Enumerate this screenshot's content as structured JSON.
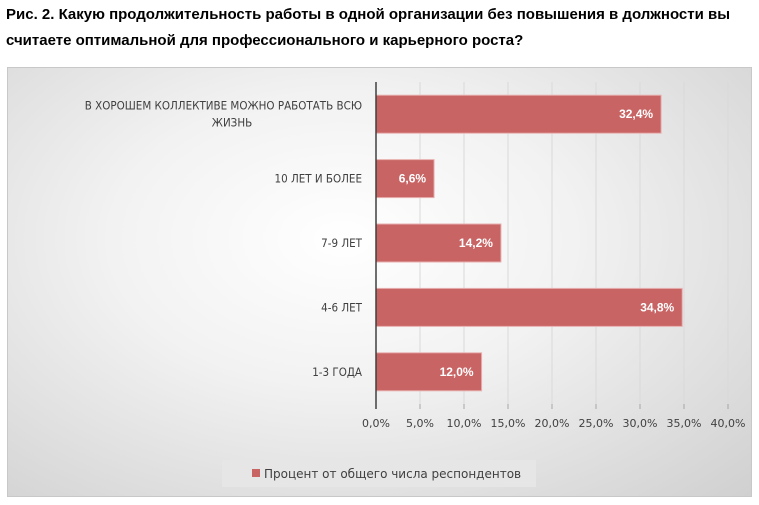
{
  "title": "Рис. 2. Какую продолжительность работы в одной организации без повышения в должности вы считаете оптимальной для профессионального и карьерного роста?",
  "chart_data": {
    "type": "bar",
    "orientation": "horizontal",
    "categories": [
      [
        "В ХОРОШЕМ КОЛЛЕКТИВЕ МОЖНО РАБОТАТЬ ВСЮ",
        "ЖИЗНЬ"
      ],
      [
        "10 ЛЕТ И БОЛЕЕ"
      ],
      [
        "7-9 ЛЕТ"
      ],
      [
        "4-6 ЛЕТ"
      ],
      [
        "1-3 ГОДА"
      ]
    ],
    "series": [
      {
        "name": "Процент от общего числа респондентов",
        "values": [
          32.4,
          6.6,
          14.2,
          34.8,
          12.0
        ],
        "color": "#c96464"
      }
    ],
    "data_labels": [
      "32,4%",
      "6,6%",
      "14,2%",
      "34,8%",
      "12,0%"
    ],
    "xlim": [
      0,
      40
    ],
    "xticks": [
      0,
      5,
      10,
      15,
      20,
      25,
      30,
      35,
      40
    ],
    "xtick_labels": [
      "0,0%",
      "5,0%",
      "10,0%",
      "15,0%",
      "20,0%",
      "25,0%",
      "30,0%",
      "35,0%",
      "40,0%"
    ],
    "grid": "vertical",
    "legend": "bottom"
  }
}
